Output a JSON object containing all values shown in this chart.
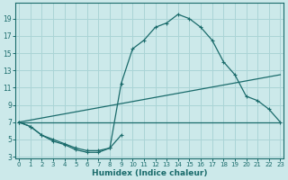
{
  "xlabel": "Humidex (Indice chaleur)",
  "bg_color": "#cce9ea",
  "grid_color": "#aad4d6",
  "line_color": "#1a6b6b",
  "xlim": [
    0,
    23
  ],
  "ylim": [
    3,
    20
  ],
  "xticks": [
    0,
    1,
    2,
    3,
    4,
    5,
    6,
    7,
    8,
    9,
    10,
    11,
    12,
    13,
    14,
    15,
    16,
    17,
    18,
    19,
    20,
    21,
    22,
    23
  ],
  "yticks": [
    3,
    5,
    7,
    9,
    11,
    13,
    15,
    17,
    19
  ],
  "line1_x": [
    0,
    1,
    2,
    3,
    4,
    5,
    6,
    7,
    8,
    9,
    10,
    11,
    12,
    13,
    14,
    15,
    16,
    17,
    18,
    19,
    20,
    21,
    22,
    23
  ],
  "line1_y": [
    7.0,
    6.5,
    5.5,
    5.0,
    4.5,
    4.0,
    3.7,
    3.7,
    4.0,
    11.5,
    15.5,
    16.5,
    18.0,
    18.5,
    19.5,
    19.0,
    18.0,
    16.5,
    14.0,
    12.5,
    10.0,
    9.5,
    8.5,
    7.0
  ],
  "line2_x": [
    0,
    23
  ],
  "line2_y": [
    7.0,
    12.5
  ],
  "line3_x": [
    0,
    23
  ],
  "line3_y": [
    7.0,
    7.0
  ],
  "line4_x": [
    0,
    1,
    2,
    3,
    4,
    5,
    6,
    7,
    8,
    9
  ],
  "line4_y": [
    7.0,
    6.5,
    5.5,
    4.8,
    4.4,
    3.8,
    3.5,
    3.5,
    4.0,
    5.5
  ]
}
